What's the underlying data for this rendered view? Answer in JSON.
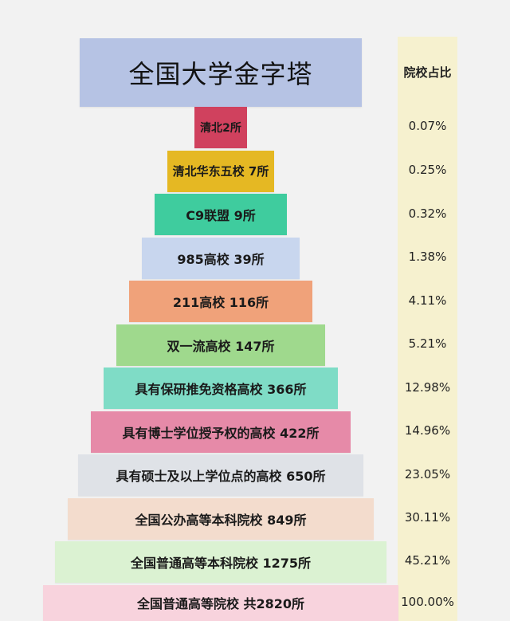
{
  "chart_data": {
    "type": "table",
    "title": "全国大学金字塔",
    "column_header": "院校占比",
    "rows": [
      {
        "label": "清北2所",
        "count": 2,
        "percent": "0.07%",
        "color": "#d0415e"
      },
      {
        "label": "清北华东五校  7所",
        "count": 7,
        "percent": "0.25%",
        "color": "#e5b823"
      },
      {
        "label": "C9联盟   9所",
        "count": 9,
        "percent": "0.32%",
        "color": "#3fcc9e"
      },
      {
        "label": "985高校   39所",
        "count": 39,
        "percent": "1.38%",
        "color": "#c8d6ee"
      },
      {
        "label": "211高校   116所",
        "count": 116,
        "percent": "4.11%",
        "color": "#f0a27a"
      },
      {
        "label": "双一流高校  147所",
        "count": 147,
        "percent": "5.21%",
        "color": "#9fd98d"
      },
      {
        "label": "具有保研推免资格高校   366所",
        "count": 366,
        "percent": "12.98%",
        "color": "#7fdcc6"
      },
      {
        "label": "具有博士学位授予权的高校   422所",
        "count": 422,
        "percent": "14.96%",
        "color": "#e68aa8"
      },
      {
        "label": "具有硕士及以上学位点的高校   650所",
        "count": 650,
        "percent": "23.05%",
        "color": "#dfe2e7"
      },
      {
        "label": "全国公办高等本科院校   849所",
        "count": 849,
        "percent": "30.11%",
        "color": "#f3dccd"
      },
      {
        "label": "全国普通高等本科院校   1275所",
        "count": 1275,
        "percent": "45.21%",
        "color": "#dbf2d2"
      },
      {
        "label": "全国普通高等院校   共2820所",
        "count": 2820,
        "percent": "100.00%",
        "color": "#f8d3dd"
      }
    ]
  },
  "style": {
    "title_bg": "#b6c3e4",
    "pct_col_bg": "#f6f1cf"
  }
}
